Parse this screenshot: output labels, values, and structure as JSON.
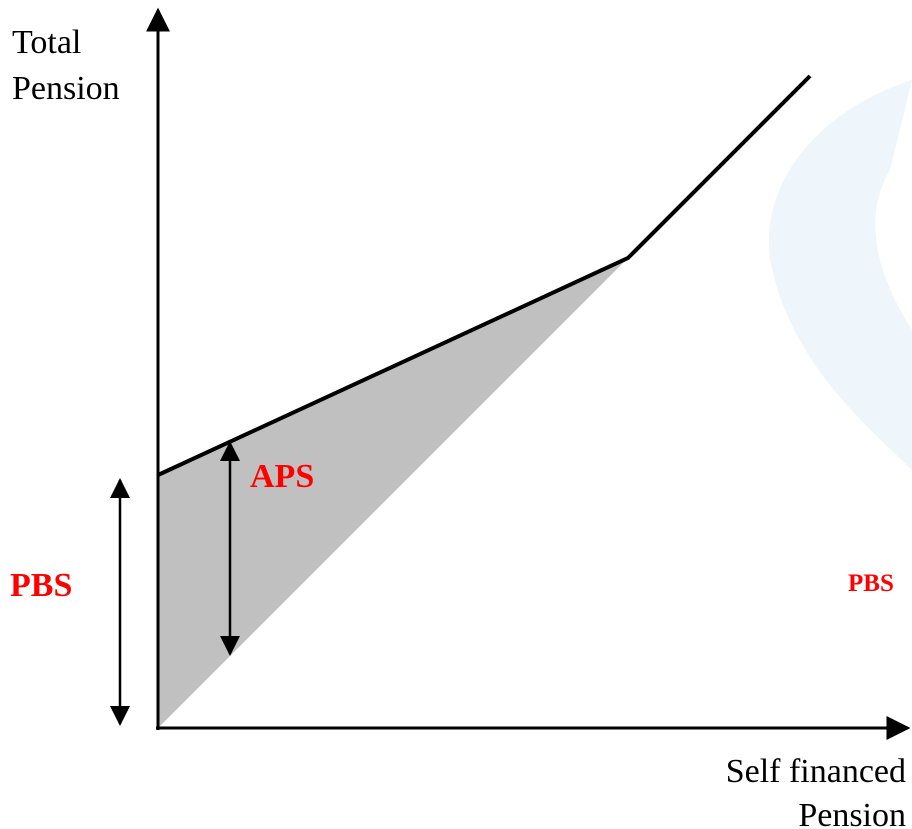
{
  "y_axis_label": [
    "Total",
    "Pension"
  ],
  "x_axis_label": [
    "Self financed",
    "Pension"
  ],
  "annotations": {
    "aps": "APS",
    "pbs_left": "PBS",
    "pbs_right": "PBS"
  }
}
